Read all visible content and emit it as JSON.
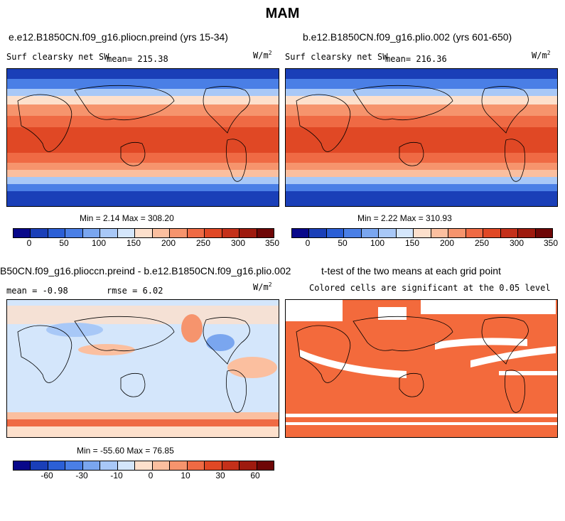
{
  "title": "MAM",
  "panels": {
    "p1": {
      "title": "e.e12.B1850CN.f09_g16.pliocn.preind (yrs 15-34)",
      "varname": "Surf clearsky net SW",
      "mean": "mean= 215.38",
      "units": "W/m",
      "units_exp": "2",
      "minmax": "Min =   2.14 Max = 308.20"
    },
    "p2": {
      "title": "b.e12.B1850CN.f09_g16.plio.002 (yrs 601-650)",
      "varname": "Surf clearsky net SW",
      "mean": "mean= 216.36",
      "units": "W/m",
      "units_exp": "2",
      "minmax": "Min =   2.22 Max = 310.93"
    },
    "p3": {
      "title": "B50CN.f09_g16.plioccn.preind - b.e12.B1850CN.f09_g16.plio.002",
      "mean": "mean =  -0.98",
      "rmse": "rmse =   6.02",
      "units": "W/m",
      "units_exp": "2",
      "minmax": "Min = -55.60 Max =  76.85"
    },
    "p4": {
      "title": "t-test of the two means at each grid point",
      "subtitle": "Colored cells are significant at the 0.05 level"
    }
  },
  "colorbar_abs": {
    "colors": [
      "#08088a",
      "#1a3fb8",
      "#2b5fd6",
      "#4a7fe6",
      "#7aa6ef",
      "#a8c8f7",
      "#d4e6fb",
      "#fde0cc",
      "#fbbf9f",
      "#f6946d",
      "#ef6a44",
      "#e04825",
      "#c4301a",
      "#9e1a0e",
      "#6e0606"
    ],
    "ticks": [
      "0",
      "50",
      "100",
      "150",
      "200",
      "250",
      "300",
      "350"
    ]
  },
  "colorbar_diff": {
    "colors": [
      "#08088a",
      "#1a3fb8",
      "#2b5fd6",
      "#4a7fe6",
      "#7aa6ef",
      "#a8c8f7",
      "#d4e6fb",
      "#fde0cc",
      "#fbbf9f",
      "#f6946d",
      "#ef6a44",
      "#e04825",
      "#c4301a",
      "#9e1a0e",
      "#6e0606"
    ],
    "ticks": [
      "-60",
      "-30",
      "-10",
      "0",
      "10",
      "30",
      "60"
    ]
  }
}
